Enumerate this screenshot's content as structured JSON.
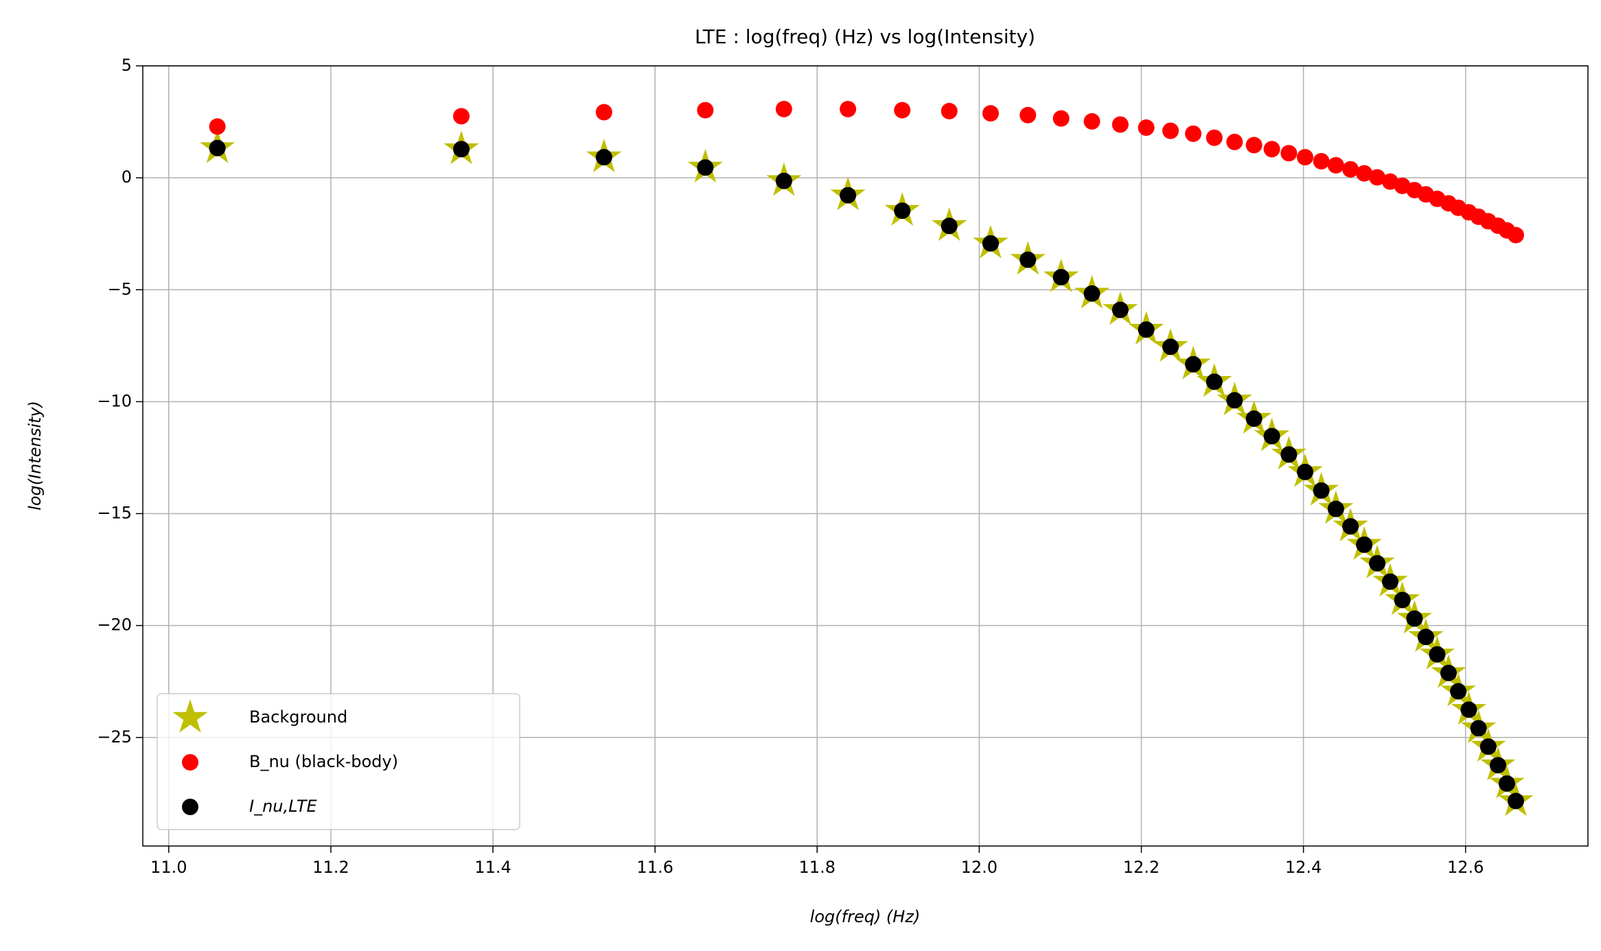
{
  "chart_data": {
    "type": "scatter",
    "title": "LTE : log(freq) (Hz) vs log(Intensity)",
    "x_label": "log(freq) (Hz)",
    "y_label": "log(Intensity)",
    "x": [
      11.06,
      11.361,
      11.537,
      11.662,
      11.759,
      11.838,
      11.905,
      11.963,
      12.014,
      12.06,
      12.101,
      12.139,
      12.174,
      12.206,
      12.236,
      12.264,
      12.29,
      12.315,
      12.339,
      12.361,
      12.382,
      12.402,
      12.422,
      12.44,
      12.458,
      12.475,
      12.491,
      12.507,
      12.522,
      12.537,
      12.551,
      12.565,
      12.579,
      12.591,
      12.604,
      12.616,
      12.628,
      12.64,
      12.651,
      12.662
    ],
    "series": [
      {
        "name": "Background",
        "color": "#bfbf00",
        "marker": "star",
        "values": [
          1.33,
          1.28,
          0.92,
          0.46,
          -0.14,
          -0.78,
          -1.47,
          -2.15,
          -2.93,
          -3.66,
          -4.44,
          -5.17,
          -5.9,
          -6.78,
          -7.55,
          -8.33,
          -9.11,
          -9.94,
          -10.76,
          -11.54,
          -12.36,
          -13.14,
          -13.97,
          -14.79,
          -15.57,
          -16.39,
          -17.22,
          -18.04,
          -18.86,
          -19.69,
          -20.51,
          -21.29,
          -22.12,
          -22.94,
          -23.76,
          -24.59,
          -25.41,
          -26.24,
          -27.06,
          -27.84
        ]
      },
      {
        "name": "B_nu (black-body)",
        "color": "#ff0000",
        "marker": "circle",
        "values": [
          2.29,
          2.75,
          2.93,
          3.02,
          3.07,
          3.07,
          3.02,
          2.98,
          2.88,
          2.8,
          2.65,
          2.52,
          2.38,
          2.24,
          2.1,
          1.97,
          1.79,
          1.6,
          1.46,
          1.28,
          1.1,
          0.92,
          0.74,
          0.56,
          0.38,
          0.2,
          0.02,
          -0.17,
          -0.36,
          -0.55,
          -0.74,
          -0.94,
          -1.14,
          -1.34,
          -1.54,
          -1.74,
          -1.94,
          -2.14,
          -2.35,
          -2.56
        ]
      },
      {
        "name": "I_nu,LTE",
        "color": "#000000",
        "marker": "circle",
        "values": [
          1.33,
          1.28,
          0.92,
          0.46,
          -0.14,
          -0.78,
          -1.47,
          -2.15,
          -2.93,
          -3.66,
          -4.44,
          -5.17,
          -5.9,
          -6.78,
          -7.55,
          -8.33,
          -9.11,
          -9.94,
          -10.76,
          -11.54,
          -12.36,
          -13.14,
          -13.97,
          -14.79,
          -15.57,
          -16.39,
          -17.22,
          -18.04,
          -18.86,
          -19.69,
          -20.51,
          -21.29,
          -22.12,
          -22.94,
          -23.76,
          -24.59,
          -25.41,
          -26.24,
          -27.06,
          -27.84
        ]
      }
    ],
    "xlim": [
      10.968,
      12.751
    ],
    "ylim": [
      -29.85,
      5
    ],
    "xticks": [
      {
        "value": 11,
        "label": "11.0"
      },
      11.2,
      11.4,
      11.6,
      11.8,
      {
        "value": 12,
        "label": "12.0"
      },
      12.2,
      12.4,
      12.6
    ],
    "yticks": [
      5,
      0,
      {
        "value": -5,
        "label": "−5"
      },
      {
        "value": -10,
        "label": "−10"
      },
      {
        "value": -15,
        "label": "−15"
      },
      {
        "value": -20,
        "label": "−20"
      },
      {
        "value": -25,
        "label": "−25"
      }
    ],
    "grid": true,
    "legend": "lower left"
  }
}
